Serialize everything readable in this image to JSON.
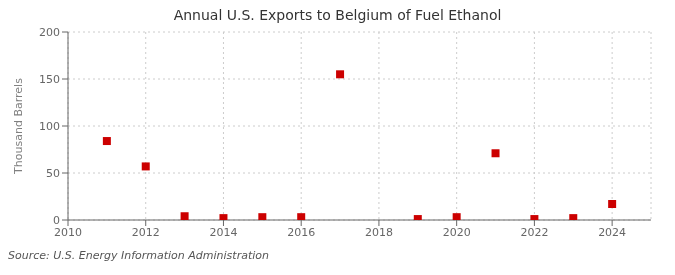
{
  "chart_data": {
    "type": "scatter",
    "title": "Annual U.S. Exports to Belgium of Fuel Ethanol",
    "ylabel": "Thousand Barrels",
    "annotation": "Source: U.S. Energy Information Administration",
    "x": [
      2011,
      2012,
      2013,
      2014,
      2015,
      2016,
      2017,
      2019,
      2020,
      2021,
      2022,
      2023,
      2024
    ],
    "values": [
      84,
      57,
      4,
      2,
      3,
      3,
      155,
      1,
      3,
      71,
      1,
      2,
      17
    ],
    "color": "#cc0000",
    "marker": "square",
    "xlim": [
      2010,
      2025
    ],
    "ylim": [
      0,
      200
    ],
    "xticks": [
      2010,
      2012,
      2014,
      2016,
      2018,
      2020,
      2022,
      2024
    ],
    "yticks": [
      0,
      50,
      100,
      150,
      200
    ],
    "grid": true
  }
}
